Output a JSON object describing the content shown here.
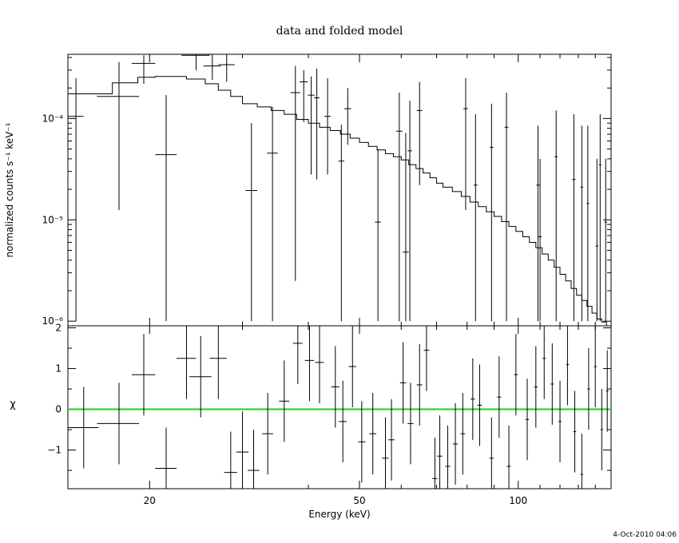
{
  "chart_data": [
    {
      "type": "scatter",
      "title": "data and folded model",
      "xlabel": "",
      "ylabel": "normalized counts s⁻¹ keV⁻¹",
      "xscale": "log",
      "yscale": "log",
      "xlim": [
        14,
        150
      ],
      "ylim": [
        9e-07,
        0.00043
      ],
      "grid": false,
      "y_ticks": [
        {
          "value": 1e-06,
          "label": "10⁻⁶"
        },
        {
          "value": 1e-05,
          "label": "10⁻⁵"
        },
        {
          "value": 0.0001,
          "label": "10⁻⁴"
        }
      ],
      "data_series": {
        "points": [
          [
            14.5,
            0.000105,
            0.5,
            1e-06,
            0.00025
          ],
          [
            17.5,
            0.000165,
            1.6,
            1.25e-05,
            0.00036
          ],
          [
            19.5,
            0.00035,
            1.0,
            0.00022,
            0.00042
          ],
          [
            21.5,
            4.4e-05,
            1.0,
            1e-06,
            0.00017
          ],
          [
            24.5,
            0.00042,
            1.5,
            0.0003,
            0.00043
          ],
          [
            26.3,
            0.00033,
            1.0,
            0.00024,
            0.00043
          ],
          [
            28.0,
            0.00034,
            1.0,
            0.00023,
            0.00043
          ],
          [
            31.2,
            1.95e-05,
            0.8,
            1e-06,
            9e-05
          ],
          [
            34.2,
            4.55e-05,
            0.8,
            1e-06,
            0.00013
          ],
          [
            37.8,
            0.00018,
            0.8,
            2.5e-06,
            0.00033
          ],
          [
            39.2,
            0.00023,
            0.7,
            9.2e-05,
            0.0003
          ],
          [
            40.5,
            0.00017,
            0.6,
            2.8e-05,
            0.00026
          ],
          [
            41.5,
            0.00016,
            0.5,
            2.5e-05,
            0.00031
          ],
          [
            43.5,
            0.000105,
            0.6,
            2.8e-05,
            0.00025
          ],
          [
            46.2,
            3.8e-05,
            0.6,
            1e-06,
            8.7e-05
          ],
          [
            47.5,
            0.000125,
            0.7,
            5.5e-05,
            0.0002
          ],
          [
            54.2,
            9.5e-06,
            0.7,
            1e-06,
            5e-05
          ],
          [
            59.5,
            7.5e-05,
            0.8,
            1e-06,
            0.00018
          ],
          [
            61.2,
            4.8e-06,
            0.8,
            1e-06,
            7.2e-05
          ],
          [
            62.3,
            4.8e-05,
            0.6,
            1e-06,
            0.00015
          ],
          [
            65.0,
            0.00012,
            0.8,
            2.2e-05,
            0.00023
          ],
          [
            79.5,
            0.000125,
            0.8,
            1.25e-05,
            0.00025
          ],
          [
            83.0,
            2.2e-05,
            0.7,
            1e-06,
            0.00011
          ],
          [
            89.0,
            5.2e-05,
            0.7,
            1e-06,
            0.00014
          ],
          [
            95.0,
            8.2e-05,
            0.8,
            1e-06,
            0.00018
          ],
          [
            109.0,
            2.2e-05,
            0.8,
            1e-06,
            8.5e-05
          ],
          [
            110.0,
            6.8e-06,
            0.8,
            1e-06,
            4e-05
          ],
          [
            118.0,
            4.2e-05,
            0.8,
            1e-06,
            0.00012
          ],
          [
            127.5,
            2.5e-05,
            1.0,
            1e-06,
            0.00011
          ],
          [
            132.0,
            2.1e-05,
            0.8,
            1e-06,
            8.5e-05
          ],
          [
            135.5,
            1.45e-05,
            0.8,
            1e-06,
            8.5e-05
          ],
          [
            141.0,
            5.5e-06,
            0.8,
            1e-06,
            4e-05
          ],
          [
            143.0,
            3.5e-05,
            0.8,
            1e-06,
            0.00011
          ],
          [
            146.5,
            9.5e-06,
            0.8,
            1e-06,
            4e-05
          ]
        ]
      },
      "model_series": {
        "steps": [
          [
            14,
            0.000175
          ],
          [
            17,
            0.000225
          ],
          [
            19,
            0.000255
          ],
          [
            20.5,
            0.00026
          ],
          [
            23.5,
            0.000245
          ],
          [
            25.5,
            0.00022
          ],
          [
            27,
            0.00019
          ],
          [
            28.5,
            0.000165
          ],
          [
            30,
            0.00014
          ],
          [
            32,
            0.00013
          ],
          [
            34,
            0.00012
          ],
          [
            36,
            0.00011
          ],
          [
            38,
            9.8e-05
          ],
          [
            40,
            9e-05
          ],
          [
            42,
            8.2e-05
          ],
          [
            44,
            7.6e-05
          ],
          [
            46,
            7e-05
          ],
          [
            48,
            6.4e-05
          ],
          [
            50,
            5.8e-05
          ],
          [
            52,
            5.3e-05
          ],
          [
            54,
            4.9e-05
          ],
          [
            56,
            4.5e-05
          ],
          [
            58,
            4.2e-05
          ],
          [
            60,
            3.9e-05
          ],
          [
            62,
            3.5e-05
          ],
          [
            64,
            3.2e-05
          ],
          [
            66,
            2.9e-05
          ],
          [
            68,
            2.6e-05
          ],
          [
            70,
            2.3e-05
          ],
          [
            72,
            2.1e-05
          ],
          [
            75,
            1.9e-05
          ],
          [
            78,
            1.7e-05
          ],
          [
            81,
            1.5e-05
          ],
          [
            84,
            1.35e-05
          ],
          [
            87,
            1.2e-05
          ],
          [
            90,
            1.08e-05
          ],
          [
            93,
            9.6e-06
          ],
          [
            96,
            8.6e-06
          ],
          [
            99,
            7.7e-06
          ],
          [
            102,
            6.8e-06
          ],
          [
            105,
            6e-06
          ],
          [
            108,
            5.3e-06
          ],
          [
            111,
            4.6e-06
          ],
          [
            114,
            4e-06
          ],
          [
            117,
            3.4e-06
          ],
          [
            120,
            2.9e-06
          ],
          [
            123,
            2.5e-06
          ],
          [
            126,
            2.1e-06
          ],
          [
            129,
            1.8e-06
          ],
          [
            132,
            1.6e-06
          ],
          [
            135,
            1.4e-06
          ],
          [
            138,
            1.2e-06
          ],
          [
            141,
            1.05e-06
          ],
          [
            144,
            9.8e-07
          ],
          [
            147,
            9e-07
          ],
          [
            150,
            9e-07
          ]
        ]
      }
    },
    {
      "type": "scatter",
      "xlabel": "Energy (keV)",
      "ylabel": "χ",
      "xscale": "log",
      "xlim": [
        14,
        150
      ],
      "ylim": [
        -1.95,
        2.05
      ],
      "grid": false,
      "x_ticks": [
        {
          "value": 20,
          "label": "20"
        },
        {
          "value": 50,
          "label": "50"
        },
        {
          "value": 100,
          "label": "100"
        }
      ],
      "y_ticks": [
        {
          "value": -1,
          "label": "−1"
        },
        {
          "value": 0,
          "label": "0"
        },
        {
          "value": 1,
          "label": "1"
        },
        {
          "value": 2,
          "label": "2"
        }
      ],
      "zero_line_color": "#22cc22",
      "points": [
        [
          15.0,
          -0.45,
          1.0,
          -1.45,
          0.55
        ],
        [
          17.5,
          -0.35,
          1.6,
          -1.35,
          0.65
        ],
        [
          19.5,
          0.85,
          1.0,
          -0.15,
          1.85
        ],
        [
          21.5,
          -1.45,
          1.0,
          -2.45,
          -0.45
        ],
        [
          23.5,
          1.25,
          1.0,
          0.25,
          2.25
        ],
        [
          25.0,
          0.8,
          1.2,
          -0.2,
          1.8
        ],
        [
          27.0,
          1.25,
          1.0,
          0.25,
          2.25
        ],
        [
          28.5,
          -1.55,
          0.8,
          -2.55,
          -0.55
        ],
        [
          30.0,
          -1.05,
          0.8,
          -2.05,
          -0.05
        ],
        [
          31.5,
          -1.5,
          0.8,
          -2.5,
          -0.5
        ],
        [
          33.5,
          -0.6,
          0.8,
          -1.6,
          0.4
        ],
        [
          36.0,
          0.2,
          0.8,
          -0.8,
          1.2
        ],
        [
          38.2,
          1.62,
          0.8,
          0.62,
          2.62
        ],
        [
          40.2,
          1.2,
          0.8,
          0.2,
          2.2
        ],
        [
          42.0,
          1.15,
          0.8,
          0.15,
          2.15
        ],
        [
          45.0,
          0.55,
          0.8,
          -0.45,
          1.55
        ],
        [
          46.5,
          -0.3,
          0.8,
          -1.3,
          0.7
        ],
        [
          48.5,
          1.05,
          0.8,
          0.05,
          2.05
        ],
        [
          50.5,
          -0.8,
          0.8,
          -1.8,
          0.2
        ],
        [
          53.0,
          -0.6,
          0.8,
          -1.6,
          0.4
        ],
        [
          56.0,
          -1.2,
          0.8,
          -2.2,
          -0.2
        ],
        [
          57.5,
          -0.75,
          0.8,
          -1.75,
          0.25
        ],
        [
          60.5,
          0.65,
          0.8,
          -0.35,
          1.65
        ],
        [
          62.5,
          -0.35,
          0.8,
          -1.35,
          0.65
        ],
        [
          65.0,
          0.6,
          0.8,
          -0.4,
          1.6
        ],
        [
          67.0,
          1.45,
          0.8,
          0.45,
          2.45
        ],
        [
          69.5,
          -1.7,
          0.8,
          -2.7,
          -0.7
        ],
        [
          71.0,
          -1.15,
          0.8,
          -2.15,
          -0.15
        ],
        [
          73.5,
          -1.4,
          0.8,
          -2.4,
          -0.4
        ],
        [
          76.0,
          -0.85,
          0.8,
          -1.85,
          0.15
        ],
        [
          78.5,
          -0.6,
          0.8,
          -1.6,
          0.4
        ],
        [
          82.0,
          0.25,
          0.8,
          -0.75,
          1.25
        ],
        [
          84.5,
          0.1,
          0.8,
          -0.9,
          1.1
        ],
        [
          89.0,
          -1.2,
          0.8,
          -2.2,
          -0.2
        ],
        [
          92.0,
          0.3,
          0.8,
          -0.7,
          1.3
        ],
        [
          96.0,
          -1.4,
          0.8,
          -2.4,
          -0.4
        ],
        [
          99.0,
          0.85,
          0.8,
          -0.15,
          1.85
        ],
        [
          104.0,
          -0.25,
          0.8,
          -1.25,
          0.75
        ],
        [
          108.0,
          0.55,
          0.8,
          -0.45,
          1.55
        ],
        [
          112.0,
          1.25,
          0.8,
          0.25,
          2.25
        ],
        [
          116.0,
          0.62,
          0.8,
          -0.38,
          1.62
        ],
        [
          120.0,
          -0.3,
          0.8,
          -1.3,
          0.7
        ],
        [
          124.0,
          1.1,
          0.8,
          0.1,
          2.1
        ],
        [
          128.0,
          -0.55,
          0.8,
          -1.55,
          0.45
        ],
        [
          132.0,
          -1.6,
          0.8,
          -2.6,
          -0.6
        ],
        [
          136.0,
          0.5,
          0.8,
          -0.5,
          1.5
        ],
        [
          140.0,
          1.05,
          0.8,
          0.05,
          2.05
        ],
        [
          144.0,
          -0.5,
          0.8,
          -1.5,
          0.5
        ],
        [
          147.5,
          0.45,
          0.8,
          -0.55,
          1.45
        ]
      ]
    }
  ],
  "footer": {
    "timestamp": "4-Oct-2010 04:06"
  }
}
